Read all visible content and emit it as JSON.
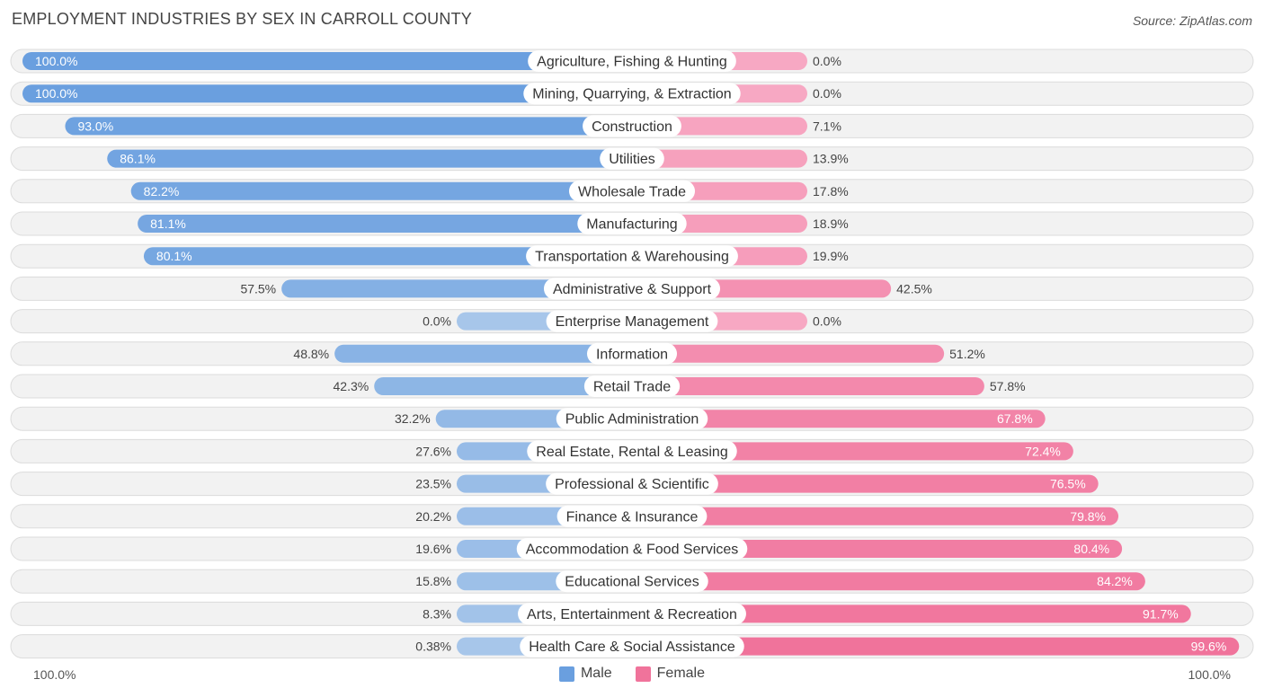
{
  "title": "EMPLOYMENT INDUSTRIES BY SEX IN CARROLL COUNTY",
  "source": "Source: ZipAtlas.com",
  "colors": {
    "male_strong": "#6a9fdf",
    "male_light": "#a7c6ea",
    "female_strong": "#f0739b",
    "female_light": "#f7a8c3",
    "row_bg": "#f2f2f2",
    "row_border": "#dcdcdc"
  },
  "legend": {
    "male": "Male",
    "female": "Female"
  },
  "axis": {
    "left": "100.0%",
    "right": "100.0%"
  },
  "chart_data": {
    "type": "bar",
    "orientation": "horizontal-diverging",
    "title": "EMPLOYMENT INDUSTRIES BY SEX IN CARROLL COUNTY",
    "xlabel": "",
    "ylabel": "",
    "xlim": [
      -100,
      100
    ],
    "categories": [
      "Agriculture, Fishing & Hunting",
      "Mining, Quarrying, & Extraction",
      "Construction",
      "Utilities",
      "Wholesale Trade",
      "Manufacturing",
      "Transportation & Warehousing",
      "Administrative & Support",
      "Enterprise Management",
      "Information",
      "Retail Trade",
      "Public Administration",
      "Real Estate, Rental & Leasing",
      "Professional & Scientific",
      "Finance & Insurance",
      "Accommodation & Food Services",
      "Educational Services",
      "Arts, Entertainment & Recreation",
      "Health Care & Social Assistance"
    ],
    "series": [
      {
        "name": "Male",
        "values": [
          100.0,
          100.0,
          93.0,
          86.1,
          82.2,
          81.1,
          80.1,
          57.5,
          0.0,
          48.8,
          42.3,
          32.2,
          27.6,
          23.5,
          20.2,
          19.6,
          15.8,
          8.3,
          0.38
        ],
        "labels": [
          "100.0%",
          "100.0%",
          "93.0%",
          "86.1%",
          "82.2%",
          "81.1%",
          "80.1%",
          "57.5%",
          "0.0%",
          "48.8%",
          "42.3%",
          "32.2%",
          "27.6%",
          "23.5%",
          "20.2%",
          "19.6%",
          "15.8%",
          "8.3%",
          "0.38%"
        ]
      },
      {
        "name": "Female",
        "values": [
          0.0,
          0.0,
          7.1,
          13.9,
          17.8,
          18.9,
          19.9,
          42.5,
          0.0,
          51.2,
          57.8,
          67.8,
          72.4,
          76.5,
          79.8,
          80.4,
          84.2,
          91.7,
          99.6
        ],
        "labels": [
          "0.0%",
          "0.0%",
          "7.1%",
          "13.9%",
          "17.8%",
          "18.9%",
          "19.9%",
          "42.5%",
          "0.0%",
          "51.2%",
          "57.8%",
          "67.8%",
          "72.4%",
          "76.5%",
          "79.8%",
          "80.4%",
          "84.2%",
          "91.7%",
          "99.6%"
        ]
      }
    ],
    "legend_position": "bottom-center"
  }
}
